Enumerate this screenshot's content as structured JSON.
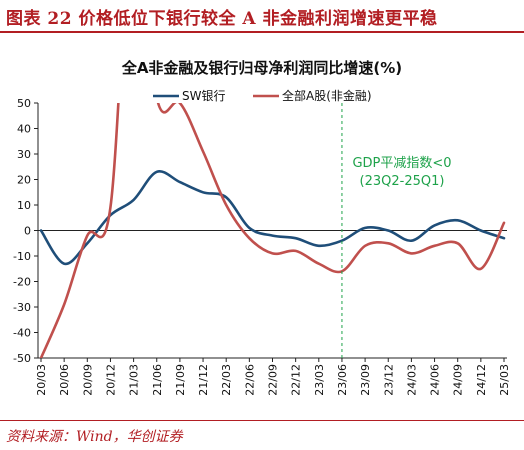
{
  "figure_title": "图表 22 价格低位下银行较全 A 非金融利润增速更平稳",
  "source": "资料来源：Wind，华创证券",
  "colors": {
    "accent": "#b21e23",
    "sw_bank": "#1f4e79",
    "all_a": "#c0504d",
    "gdp_line": "#1ea24a"
  },
  "chart_data": {
    "type": "line",
    "title": "全A非金融及银行归母净利润同比增速(%)",
    "xlabel": "",
    "ylabel": "",
    "ylim": [
      -50,
      50
    ],
    "yticks": [
      -50,
      -40,
      -30,
      -20,
      -10,
      0,
      10,
      20,
      30,
      40,
      50
    ],
    "grid": false,
    "legend_position": "top-center",
    "x": [
      "20/03",
      "20/06",
      "20/09",
      "20/12",
      "21/03",
      "21/06",
      "21/09",
      "21/12",
      "22/03",
      "22/06",
      "22/09",
      "22/12",
      "23/03",
      "23/06",
      "23/09",
      "23/12",
      "24/03",
      "24/06",
      "24/09",
      "24/12",
      "25/03"
    ],
    "series": [
      {
        "name": "SW银行",
        "color": "#1f4e79",
        "values": [
          0,
          -13,
          -5,
          6,
          12,
          23,
          19,
          15,
          13,
          1,
          -2,
          -3,
          -6,
          -4,
          1,
          0,
          -4,
          2,
          4,
          0,
          -3
        ]
      },
      {
        "name": "全部A股(非金融)",
        "color": "#c0504d",
        "values": [
          -50,
          -29,
          -2,
          9,
          130,
          52,
          50,
          31,
          10,
          -3,
          -9,
          -8,
          -13,
          -16,
          -6,
          -5,
          -9,
          -6,
          -5,
          -15,
          3
        ]
      }
    ],
    "annotation": {
      "text_line1": "GDP平减指数<0",
      "text_line2": "(23Q2-25Q1)",
      "x": "23/06"
    }
  }
}
